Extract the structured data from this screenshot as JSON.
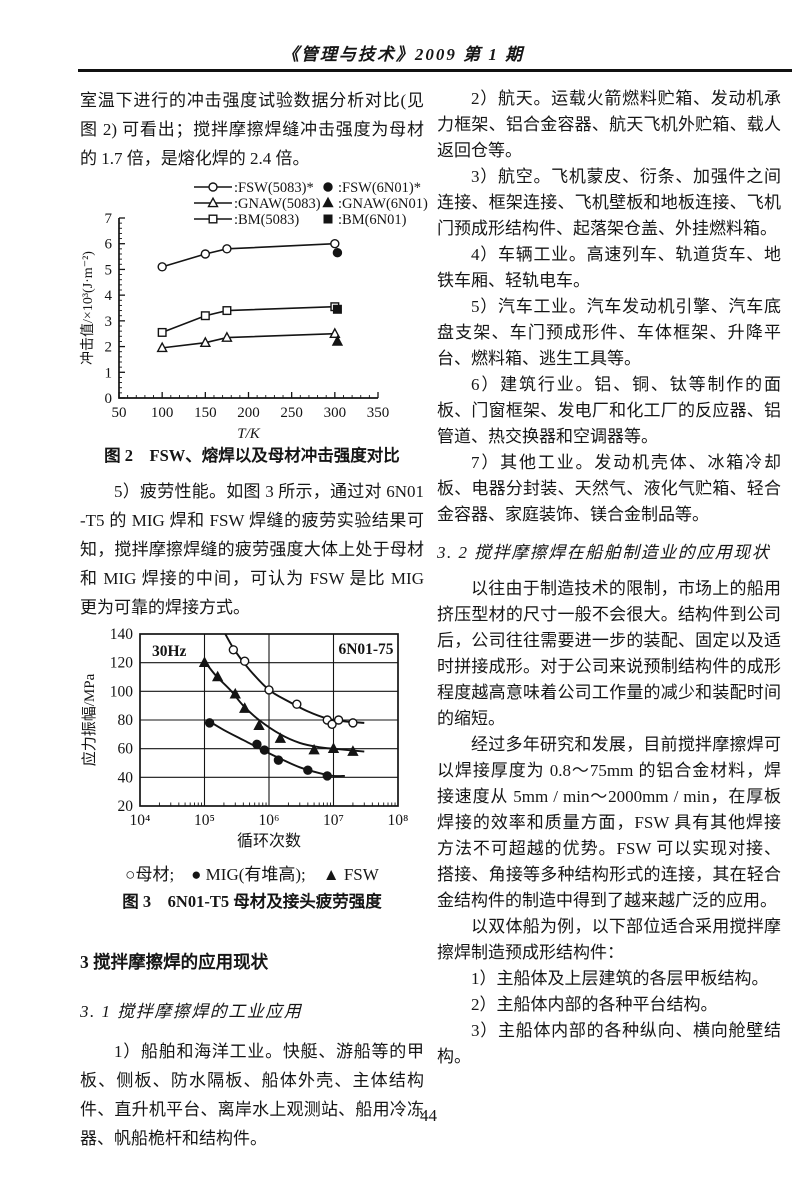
{
  "header": {
    "journal_line": "《管理与技术》2009 第 1 期"
  },
  "page_number": "44",
  "left_column": {
    "para_impact": "室温下进行的冲击强度试验数据分析对比(见图 2) 可看出；搅拌摩擦焊缝冲击强度为母材的 1.7 倍，是熔化焊的 2.4 倍。",
    "fig2_caption": "图 2　FSW、熔焊以及母材冲击强度对比",
    "para_fatigue": "5）疲劳性能。如图 3 所示，通过对 6N01-T5 的 MIG 焊和 FSW 焊缝的疲劳实验结果可知，搅拌摩擦焊缝的疲劳强度大体上处于母材和 MIG 焊接的中间，可认为 FSW 是比 MIG 更为可靠的焊接方式。",
    "fig3_legend_line": "○母材;　● MIG(有堆高);　▲ FSW",
    "fig3_caption": "图 3　6N01-T5 母材及接头疲劳强度",
    "section3_heading": "3 搅拌摩擦焊的应用现状",
    "section31_heading": "3. 1 搅拌摩擦焊的工业应用",
    "para_ship": "1）船舶和海洋工业。快艇、游船等的甲板、侧板、防水隔板、船体外壳、主体结构件、直升机平台、离岸水上观测站、船用冷冻器、帆船桅杆和结构件。"
  },
  "right_column": {
    "para_aerospace": "2）航天。运载火箭燃料贮箱、发动机承力框架、铝合金容器、航天飞机外贮箱、载人返回仓等。",
    "para_aviation": "3）航空。飞机蒙皮、衍条、加强件之间连接、框架连接、飞机壁板和地板连接、飞机门预成形结构件、起落架仓盖、外挂燃料箱。",
    "para_rail": "4）车辆工业。高速列车、轨道货车、地铁车厢、轻轨电车。",
    "para_auto": "5）汽车工业。汽车发动机引擎、汽车底盘支架、车门预成形件、车体框架、升降平台、燃料箱、逃生工具等。",
    "para_construction": "6）建筑行业。铝、铜、钛等制作的面板、门窗框架、发电厂和化工厂的反应器、铝管道、热交换器和空调器等。",
    "para_other": "7）其他工业。发动机壳体、冰箱冷却板、电器分封装、天然气、液化气贮箱、轻合金容器、家庭装饰、镁合金制品等。",
    "section32_heading": "3. 2 搅拌摩擦焊在船舶制造业的应用现状",
    "para_shipbuilding_1": "以往由于制造技术的限制，市场上的船用挤压型材的尺寸一般不会很大。结构件到公司后，公司往往需要进一步的装配、固定以及适时拼接成形。对于公司来说预制结构件的成形程度越高意味着公司工作量的减少和装配时间的缩短。",
    "para_shipbuilding_2": "经过多年研究和发展，目前搅拌摩擦焊可以焊接厚度为 0.8～75mm 的铝合金材料，焊接速度从 5mm / min～2000mm / min，在厚板焊接的效率和质量方面，FSW 具有其他焊接方法不可超越的优势。FSW 可以实现对接、搭接、角接等多种结构形式的连接，其在轻合金结构件的制造中得到了越来越广泛的应用。",
    "para_catamaran_intro": "以双体船为例，以下部位适合采用搅拌摩擦焊制造预成形结构件：",
    "item_deck": "1）主船体及上层建筑的各层甲板结构。",
    "item_platform": "2）主船体内部的各种平台结构。",
    "item_bulkhead": "3）主船体内部的各种纵向、横向舱壁结构。"
  },
  "chart_data": [
    {
      "type": "line",
      "figure": "图2",
      "title": "FSW、熔焊以及母材冲击强度对比",
      "xlabel": "T/K",
      "ylabel": "冲击值/×10³(J·m⁻²)",
      "xlim": [
        50,
        350
      ],
      "ylim": [
        0,
        7
      ],
      "xticks": [
        50,
        100,
        150,
        200,
        250,
        300,
        350
      ],
      "yticks": [
        0,
        1,
        2,
        3,
        4,
        5,
        6,
        7
      ],
      "grid": false,
      "legend_position": "top",
      "legend": [
        {
          "label": ":FSW(5083)*",
          "marker": "circle-open",
          "line": true
        },
        {
          "label": ":FSW(6N01)*",
          "marker": "circle-filled",
          "line": false
        },
        {
          "label": ":GNAW(5083)",
          "marker": "triangle-open",
          "line": true
        },
        {
          "label": ":GNAW(6N01)",
          "marker": "triangle-filled",
          "line": false
        },
        {
          "label": ":BM(5083)",
          "marker": "square-open",
          "line": true
        },
        {
          "label": ":BM(6N01)",
          "marker": "square-filled",
          "line": false
        }
      ],
      "series": [
        {
          "name": "FSW(5083)",
          "marker": "circle-open",
          "line": true,
          "points": [
            [
              100,
              5.1
            ],
            [
              150,
              5.6
            ],
            [
              175,
              5.8
            ],
            [
              300,
              6.0
            ]
          ]
        },
        {
          "name": "BM(5083)",
          "marker": "square-open",
          "line": true,
          "points": [
            [
              100,
              2.55
            ],
            [
              150,
              3.2
            ],
            [
              175,
              3.4
            ],
            [
              300,
              3.55
            ]
          ]
        },
        {
          "name": "GNAW(5083)",
          "marker": "triangle-open",
          "line": true,
          "points": [
            [
              100,
              1.95
            ],
            [
              150,
              2.15
            ],
            [
              175,
              2.35
            ],
            [
              300,
              2.5
            ]
          ]
        },
        {
          "name": "FSW(6N01)",
          "marker": "circle-filled",
          "line": false,
          "points": [
            [
              303,
              5.65
            ]
          ]
        },
        {
          "name": "BM(6N01)",
          "marker": "square-filled",
          "line": false,
          "points": [
            [
              303,
              3.45
            ]
          ]
        },
        {
          "name": "GNAW(6N01)",
          "marker": "triangle-filled",
          "line": false,
          "points": [
            [
              303,
              2.2
            ]
          ]
        }
      ]
    },
    {
      "type": "line",
      "figure": "图3",
      "title": "6N01-T5 母材及接头疲劳强度",
      "xlabel": "循环次数",
      "ylabel": "应力振幅/MPa",
      "xscale": "log",
      "xlim": [
        10000,
        100000000
      ],
      "ylim": [
        20,
        140
      ],
      "xtick_labels": [
        "10⁴",
        "10⁵",
        "10⁶",
        "10⁷",
        "10⁸"
      ],
      "yticks": [
        20,
        40,
        60,
        80,
        100,
        120,
        140
      ],
      "grid": true,
      "annotations": [
        {
          "text": "30Hz",
          "position": "top-left"
        },
        {
          "text": "6N01-75",
          "position": "top-right"
        }
      ],
      "series": [
        {
          "name": "母材",
          "marker": "circle-open",
          "markers": [
            [
              280000,
              129
            ],
            [
              420000,
              121
            ],
            [
              1000000,
              101
            ],
            [
              2700000,
              91
            ],
            [
              8000000,
              80
            ],
            [
              9500000,
              77
            ],
            [
              12000000,
              80
            ],
            [
              20000000,
              78
            ]
          ],
          "curve": [
            [
              210000,
              140
            ],
            [
              300000,
              128
            ],
            [
              500000,
              115
            ],
            [
              1000000,
              101
            ],
            [
              2000000,
              93
            ],
            [
              4000000,
              86
            ],
            [
              8000000,
              81
            ],
            [
              15000000,
              79
            ],
            [
              30000000,
              78
            ]
          ]
        },
        {
          "name": "FSW",
          "marker": "triangle-filled",
          "markers": [
            [
              100000,
              120
            ],
            [
              160000,
              110
            ],
            [
              300000,
              98
            ],
            [
              420000,
              88
            ],
            [
              700000,
              76
            ],
            [
              1500000,
              67
            ],
            [
              5000000,
              59
            ],
            [
              10000000,
              60
            ],
            [
              20000000,
              58
            ]
          ],
          "curve": [
            [
              100000,
              121
            ],
            [
              150000,
              111
            ],
            [
              250000,
              101
            ],
            [
              400000,
              90
            ],
            [
              700000,
              80
            ],
            [
              1500000,
              70
            ],
            [
              3000000,
              64
            ],
            [
              6000000,
              61
            ],
            [
              10000000,
              60
            ],
            [
              30000000,
              58
            ]
          ]
        },
        {
          "name": "MIG(有堆高)",
          "marker": "circle-filled",
          "markers": [
            [
              120000,
              78
            ],
            [
              650000,
              63
            ],
            [
              850000,
              59
            ],
            [
              1400000,
              52
            ],
            [
              4000000,
              45
            ],
            [
              8000000,
              41
            ]
          ],
          "curve": [
            [
              110000,
              80
            ],
            [
              200000,
              73
            ],
            [
              400000,
              66
            ],
            [
              800000,
              59
            ],
            [
              1500000,
              53
            ],
            [
              3000000,
              47
            ],
            [
              6000000,
              43
            ],
            [
              10000000,
              41
            ],
            [
              15000000,
              41
            ]
          ]
        }
      ]
    }
  ]
}
